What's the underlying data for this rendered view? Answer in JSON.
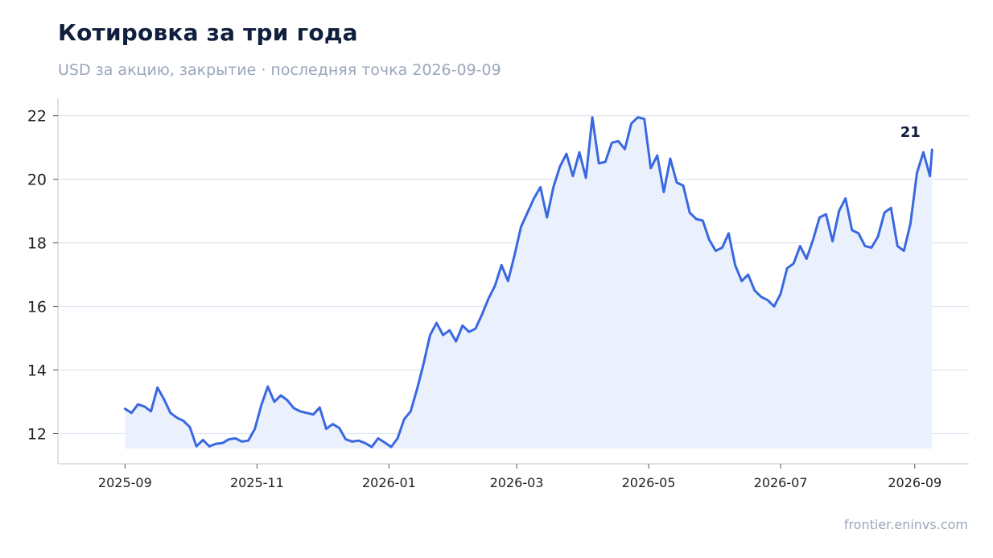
{
  "header": {
    "title": "Котировка за три года",
    "subtitle": "USD за акцию, закрытие · последняя точка 2026-09-09"
  },
  "footer": {
    "source": "frontier.eninvs.com"
  },
  "colors": {
    "line": "#3a68e0",
    "fill": "#eaf0fc",
    "grid": "#dfe4ef",
    "axis": "#d5d9e2",
    "title": "#0f1f3d",
    "muted": "#9aa6ba"
  },
  "chart_data": {
    "type": "area",
    "title": "Котировка за три года",
    "subtitle": "USD за акцию, закрытие · последняя точка 2026-09-09",
    "xlabel": "",
    "ylabel": "",
    "ylim": [
      11.05,
      22.55
    ],
    "xlim": [
      "2025-08-01",
      "2026-09-26"
    ],
    "grid": "horizontal",
    "legend": "none",
    "y_ticks": [
      12,
      14,
      16,
      18,
      20,
      22
    ],
    "x_ticks": [
      "2025-09",
      "2025-11",
      "2026-01",
      "2026-03",
      "2026-05",
      "2026-07",
      "2026-09"
    ],
    "baseline": 11.52,
    "end_label": "21",
    "series": [
      {
        "points": [
          [
            "2025-09-01",
            12.78
          ],
          [
            "2025-09-04",
            12.65
          ],
          [
            "2025-09-07",
            12.92
          ],
          [
            "2025-09-10",
            12.85
          ],
          [
            "2025-09-13",
            12.7
          ],
          [
            "2025-09-16",
            13.45
          ],
          [
            "2025-09-19",
            13.08
          ],
          [
            "2025-09-22",
            12.65
          ],
          [
            "2025-09-25",
            12.5
          ],
          [
            "2025-09-28",
            12.4
          ],
          [
            "2025-10-01",
            12.2
          ],
          [
            "2025-10-04",
            11.6
          ],
          [
            "2025-10-07",
            11.8
          ],
          [
            "2025-10-10",
            11.6
          ],
          [
            "2025-10-13",
            11.68
          ],
          [
            "2025-10-16",
            11.7
          ],
          [
            "2025-10-19",
            11.82
          ],
          [
            "2025-10-22",
            11.85
          ],
          [
            "2025-10-25",
            11.75
          ],
          [
            "2025-10-28",
            11.78
          ],
          [
            "2025-10-31",
            12.15
          ],
          [
            "2025-11-03",
            12.9
          ],
          [
            "2025-11-06",
            13.48
          ],
          [
            "2025-11-09",
            13.0
          ],
          [
            "2025-11-12",
            13.2
          ],
          [
            "2025-11-15",
            13.05
          ],
          [
            "2025-11-18",
            12.8
          ],
          [
            "2025-11-21",
            12.7
          ],
          [
            "2025-11-24",
            12.65
          ],
          [
            "2025-11-27",
            12.6
          ],
          [
            "2025-11-30",
            12.82
          ],
          [
            "2025-12-03",
            12.15
          ],
          [
            "2025-12-06",
            12.3
          ],
          [
            "2025-12-09",
            12.18
          ],
          [
            "2025-12-12",
            11.82
          ],
          [
            "2025-12-15",
            11.75
          ],
          [
            "2025-12-18",
            11.78
          ],
          [
            "2025-12-21",
            11.7
          ],
          [
            "2025-12-24",
            11.58
          ],
          [
            "2025-12-27",
            11.85
          ],
          [
            "2025-12-30",
            11.72
          ],
          [
            "2026-01-02",
            11.58
          ],
          [
            "2026-01-05",
            11.85
          ],
          [
            "2026-01-08",
            12.45
          ],
          [
            "2026-01-11",
            12.7
          ],
          [
            "2026-01-14",
            13.4
          ],
          [
            "2026-01-17",
            14.2
          ],
          [
            "2026-01-20",
            15.1
          ],
          [
            "2026-01-23",
            15.48
          ],
          [
            "2026-01-26",
            15.1
          ],
          [
            "2026-01-29",
            15.25
          ],
          [
            "2026-02-01",
            14.9
          ],
          [
            "2026-02-04",
            15.4
          ],
          [
            "2026-02-07",
            15.2
          ],
          [
            "2026-02-10",
            15.3
          ],
          [
            "2026-02-13",
            15.75
          ],
          [
            "2026-02-16",
            16.25
          ],
          [
            "2026-02-19",
            16.65
          ],
          [
            "2026-02-22",
            17.3
          ],
          [
            "2026-02-25",
            16.8
          ],
          [
            "2026-02-28",
            17.6
          ],
          [
            "2026-03-03",
            18.5
          ],
          [
            "2026-03-06",
            18.95
          ],
          [
            "2026-03-09",
            19.4
          ],
          [
            "2026-03-12",
            19.75
          ],
          [
            "2026-03-15",
            18.8
          ],
          [
            "2026-03-18",
            19.75
          ],
          [
            "2026-03-21",
            20.4
          ],
          [
            "2026-03-24",
            20.8
          ],
          [
            "2026-03-27",
            20.1
          ],
          [
            "2026-03-30",
            20.85
          ],
          [
            "2026-04-02",
            20.05
          ],
          [
            "2026-04-05",
            21.95
          ],
          [
            "2026-04-08",
            20.5
          ],
          [
            "2026-04-11",
            20.55
          ],
          [
            "2026-04-14",
            21.15
          ],
          [
            "2026-04-17",
            21.2
          ],
          [
            "2026-04-20",
            20.95
          ],
          [
            "2026-04-23",
            21.75
          ],
          [
            "2026-04-26",
            21.95
          ],
          [
            "2026-04-29",
            21.9
          ],
          [
            "2026-05-02",
            20.35
          ],
          [
            "2026-05-05",
            20.75
          ],
          [
            "2026-05-08",
            19.6
          ],
          [
            "2026-05-11",
            20.65
          ],
          [
            "2026-05-14",
            19.9
          ],
          [
            "2026-05-17",
            19.8
          ],
          [
            "2026-05-20",
            18.95
          ],
          [
            "2026-05-23",
            18.75
          ],
          [
            "2026-05-26",
            18.7
          ],
          [
            "2026-05-29",
            18.1
          ],
          [
            "2026-06-01",
            17.75
          ],
          [
            "2026-06-04",
            17.85
          ],
          [
            "2026-06-07",
            18.3
          ],
          [
            "2026-06-10",
            17.3
          ],
          [
            "2026-06-13",
            16.8
          ],
          [
            "2026-06-16",
            17.0
          ],
          [
            "2026-06-19",
            16.5
          ],
          [
            "2026-06-22",
            16.3
          ],
          [
            "2026-06-25",
            16.2
          ],
          [
            "2026-06-28",
            16.0
          ],
          [
            "2026-07-01",
            16.4
          ],
          [
            "2026-07-04",
            17.2
          ],
          [
            "2026-07-07",
            17.35
          ],
          [
            "2026-07-10",
            17.9
          ],
          [
            "2026-07-13",
            17.5
          ],
          [
            "2026-07-16",
            18.1
          ],
          [
            "2026-07-19",
            18.8
          ],
          [
            "2026-07-22",
            18.9
          ],
          [
            "2026-07-25",
            18.05
          ],
          [
            "2026-07-28",
            19.0
          ],
          [
            "2026-07-31",
            19.4
          ],
          [
            "2026-08-03",
            18.4
          ],
          [
            "2026-08-06",
            18.3
          ],
          [
            "2026-08-09",
            17.9
          ],
          [
            "2026-08-12",
            17.85
          ],
          [
            "2026-08-15",
            18.2
          ],
          [
            "2026-08-18",
            18.95
          ],
          [
            "2026-08-21",
            19.1
          ],
          [
            "2026-08-24",
            17.9
          ],
          [
            "2026-08-27",
            17.75
          ],
          [
            "2026-08-30",
            18.6
          ],
          [
            "2026-09-02",
            20.2
          ],
          [
            "2026-09-05",
            20.85
          ],
          [
            "2026-09-08",
            20.1
          ],
          [
            "2026-09-09",
            20.93
          ]
        ]
      }
    ]
  }
}
